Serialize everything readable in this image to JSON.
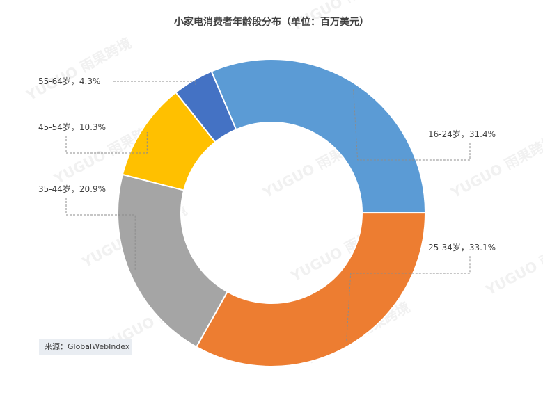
{
  "chart_data": {
    "type": "donut",
    "title": "小家电消费者年龄段分布（单位：百万美元）",
    "categories": [
      "16-24岁",
      "25-34岁",
      "35-44岁",
      "45-54岁",
      "55-64岁"
    ],
    "values": [
      31.4,
      33.1,
      20.9,
      10.3,
      4.3
    ],
    "value_labels": [
      "31.4%",
      "33.1%",
      "20.9%",
      "10.3%",
      "4.3%"
    ],
    "label_separator": "，",
    "colors": [
      "#5b9bd5",
      "#ed7d31",
      "#a5a5a5",
      "#ffc000",
      "#4472c4"
    ],
    "source": "来源：GlobalWebIndex",
    "watermark": "YUGUO 雨果跨境"
  }
}
